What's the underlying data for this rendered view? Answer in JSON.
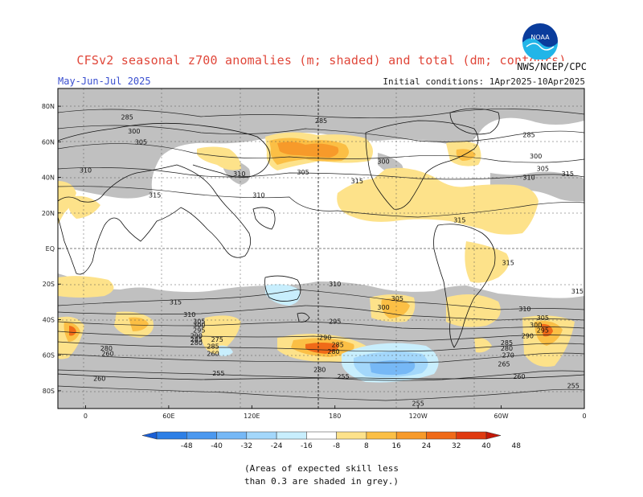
{
  "header": {
    "title": "CFSv2 seasonal z700 anomalies (m; shaded) and total (dm; contours)",
    "period": "May-Jun-Jul 2025",
    "initial_conditions": "Initial conditions: 1Apr2025-10Apr2025",
    "organization": "NWS/NCEP/CPC",
    "logo_text": "NOAA"
  },
  "map": {
    "projection": "cylindrical-equidistant",
    "lat_labels": [
      "80N",
      "60N",
      "40N",
      "20N",
      "EQ",
      "20S",
      "40S",
      "60S",
      "80S"
    ],
    "lat_values": [
      80,
      60,
      40,
      20,
      0,
      -20,
      -40,
      -60,
      -80
    ],
    "lon_labels": [
      "0",
      "60E",
      "120E",
      "180",
      "120W",
      "60W",
      "0"
    ],
    "lon_values": [
      0,
      60,
      120,
      180,
      240,
      300,
      360
    ],
    "lat_range": [
      -90,
      90
    ],
    "lon_range": [
      -20,
      360
    ],
    "contour_labels": [
      {
        "text": "285",
        "lon": 30,
        "lat": 74
      },
      {
        "text": "300",
        "lon": 35,
        "lat": 66
      },
      {
        "text": "305",
        "lon": 40,
        "lat": 60
      },
      {
        "text": "310",
        "lon": 0,
        "lat": 44
      },
      {
        "text": "315",
        "lon": 50,
        "lat": 30
      },
      {
        "text": "310",
        "lon": 125,
        "lat": 30
      },
      {
        "text": "310",
        "lon": 111,
        "lat": 42
      },
      {
        "text": "285",
        "lon": 170,
        "lat": 72
      },
      {
        "text": "300",
        "lon": 215,
        "lat": 49
      },
      {
        "text": "305",
        "lon": 157,
        "lat": 43
      },
      {
        "text": "315",
        "lon": 196,
        "lat": 38
      },
      {
        "text": "285",
        "lon": 320,
        "lat": 64
      },
      {
        "text": "300",
        "lon": 325,
        "lat": 52
      },
      {
        "text": "305",
        "lon": 330,
        "lat": 45
      },
      {
        "text": "310",
        "lon": 320,
        "lat": 40
      },
      {
        "text": "315",
        "lon": 348,
        "lat": 42
      },
      {
        "text": "315",
        "lon": 270,
        "lat": 16
      },
      {
        "text": "315",
        "lon": 305,
        "lat": -8
      },
      {
        "text": "315",
        "lon": 355,
        "lat": -24
      },
      {
        "text": "310",
        "lon": 180,
        "lat": -20
      },
      {
        "text": "315",
        "lon": 65,
        "lat": -30
      },
      {
        "text": "305",
        "lon": 225,
        "lat": -28
      },
      {
        "text": "300",
        "lon": 215,
        "lat": -33
      },
      {
        "text": "310",
        "lon": 317,
        "lat": -34
      },
      {
        "text": "310",
        "lon": 75,
        "lat": -37
      },
      {
        "text": "305",
        "lon": 330,
        "lat": -39
      },
      {
        "text": "300",
        "lon": 325,
        "lat": -43
      },
      {
        "text": "295",
        "lon": 330,
        "lat": -46
      },
      {
        "text": "290",
        "lon": 319,
        "lat": -49
      },
      {
        "text": "285",
        "lon": 304,
        "lat": -53
      },
      {
        "text": "280",
        "lon": 304,
        "lat": -56
      },
      {
        "text": "270",
        "lon": 305,
        "lat": -60
      },
      {
        "text": "265",
        "lon": 302,
        "lat": -65
      },
      {
        "text": "260",
        "lon": 313,
        "lat": -72
      },
      {
        "text": "255",
        "lon": 352,
        "lat": -77
      },
      {
        "text": "255",
        "lon": 240,
        "lat": -87
      },
      {
        "text": "260",
        "lon": 10,
        "lat": -73
      },
      {
        "text": "255",
        "lon": 96,
        "lat": -70
      },
      {
        "text": "295",
        "lon": 180,
        "lat": -41
      },
      {
        "text": "290",
        "lon": 173,
        "lat": -50
      },
      {
        "text": "285",
        "lon": 182,
        "lat": -54
      },
      {
        "text": "280",
        "lon": 179,
        "lat": -58
      },
      {
        "text": "280",
        "lon": 169,
        "lat": -68
      },
      {
        "text": "255",
        "lon": 186,
        "lat": -72
      },
      {
        "text": "275",
        "lon": 95,
        "lat": -51
      },
      {
        "text": "285",
        "lon": 92,
        "lat": -55
      },
      {
        "text": "260",
        "lon": 92,
        "lat": -59
      },
      {
        "text": "305",
        "lon": 82,
        "lat": -41
      },
      {
        "text": "300",
        "lon": 82,
        "lat": -43
      },
      {
        "text": "295",
        "lon": 82,
        "lat": -46
      },
      {
        "text": "290",
        "lon": 80,
        "lat": -49
      },
      {
        "text": "285",
        "lon": 80,
        "lat": -51
      },
      {
        "text": "280",
        "lon": 80,
        "lat": -53
      },
      {
        "text": "260",
        "lon": 16,
        "lat": -59
      },
      {
        "text": "280",
        "lon": 15,
        "lat": -56
      }
    ]
  },
  "colorbar": {
    "tick_labels": [
      "-48",
      "-40",
      "-32",
      "-24",
      "-16",
      "-8",
      "8",
      "16",
      "24",
      "32",
      "40",
      "48"
    ],
    "colors": [
      "#1a5fd6",
      "#2d7fe6",
      "#4b98ef",
      "#76b8f6",
      "#a3d7fb",
      "#c8eefd",
      "#ffffff",
      "#fde28a",
      "#fbbf45",
      "#f79a2a",
      "#f06a18",
      "#e03a10",
      "#c41808"
    ]
  },
  "footnote": {
    "line1": "(Areas of expected skill less",
    "line2": "than 0.3 are shaded in grey.)"
  },
  "colors": {
    "grey_mask": "#c0c0c0",
    "title": "#e0473a",
    "period": "#3a4fd0"
  }
}
